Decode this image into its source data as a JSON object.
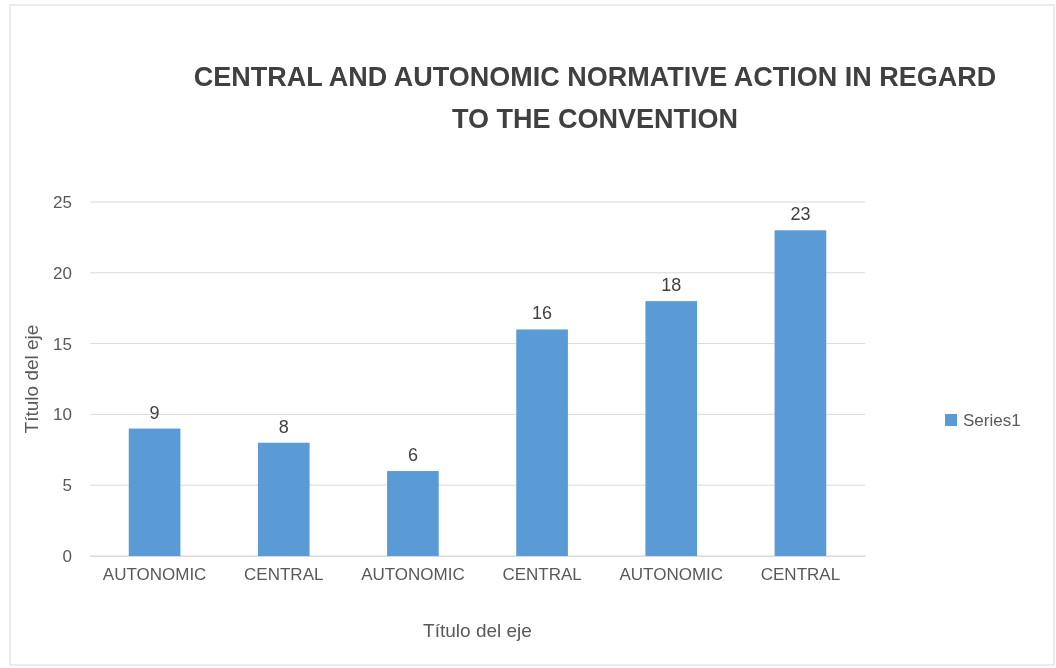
{
  "chart_data": {
    "type": "bar",
    "title": "CENTRAL AND AUTONOMIC NORMATIVE ACTION IN REGARD TO THE CONVENTION",
    "xlabel": "Título del eje",
    "ylabel": "Título del eje",
    "categories": [
      "AUTONOMIC",
      "CENTRAL",
      "AUTONOMIC",
      "CENTRAL",
      "AUTONOMIC",
      "CENTRAL"
    ],
    "series": [
      {
        "name": "Series1",
        "color": "#5b9bd5",
        "values": [
          9,
          8,
          6,
          16,
          18,
          23
        ]
      }
    ],
    "ylim": [
      0,
      25
    ],
    "yticks": [
      0,
      5,
      10,
      15,
      20,
      25
    ],
    "grid": "y",
    "legend": "right",
    "data_labels": true
  }
}
